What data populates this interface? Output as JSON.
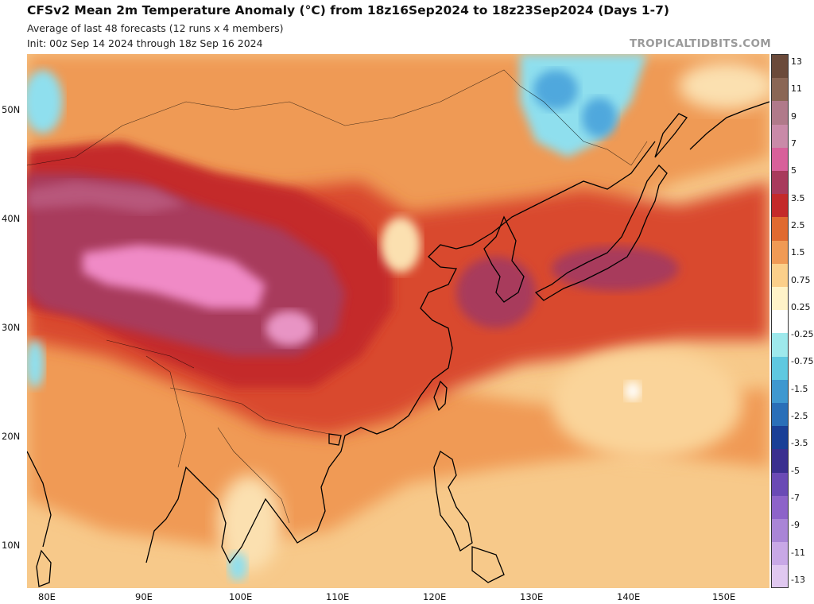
{
  "header": {
    "title": "CFSv2 Mean 2m Temperature Anomaly (°C) from 18z16Sep2024 to 18z23Sep2024 (Days 1-7)",
    "subtitle_1": "Average of last 48 forecasts (12 runs x 4 members)",
    "subtitle_2": "Init: 00z Sep 14 2024 through 18z Sep 16 2024",
    "credit": "TROPICALTIDBITS.COM"
  },
  "map": {
    "latitude_labels": [
      "50N",
      "40N",
      "30N",
      "20N",
      "10N"
    ],
    "longitude_labels": [
      "80E",
      "90E",
      "100E",
      "110E",
      "120E",
      "130E",
      "140E",
      "150E"
    ]
  },
  "colorbar": {
    "labels": [
      "13",
      "11",
      "9",
      "7",
      "5",
      "3.5",
      "2.5",
      "1.5",
      "0.75",
      "0.25",
      "-0.25",
      "-0.75",
      "-1.5",
      "-2.5",
      "-3.5",
      "-5",
      "-7",
      "-9",
      "-11",
      "-13"
    ],
    "colors": [
      "#6b4a3a",
      "#8a6655",
      "#b07a8a",
      "#c98aa8",
      "#d8609a",
      "#a83a5c",
      "#c42a2a",
      "#e06a30",
      "#f09a55",
      "#fbcf8a",
      "#fff3c8",
      "#ffffff",
      "#9ee9ec",
      "#5fc8e0",
      "#3f98d0",
      "#2a6fb8",
      "#1a3f96",
      "#3a2f8f",
      "#6a4ab5",
      "#8d63c9",
      "#a985d6",
      "#c8a8e6",
      "#e0c8f0"
    ]
  },
  "colors": {
    "land_outline": "#000000",
    "pink_max": "#f08ac6",
    "maroon": "#a83a5c",
    "red": "#c42a2a",
    "orange": "#e8763a",
    "light_orange": "#f4a766",
    "tan": "#f9cf8e",
    "cyan_negative": "#8fdfee",
    "blue_negative": "#4fa8dd"
  }
}
